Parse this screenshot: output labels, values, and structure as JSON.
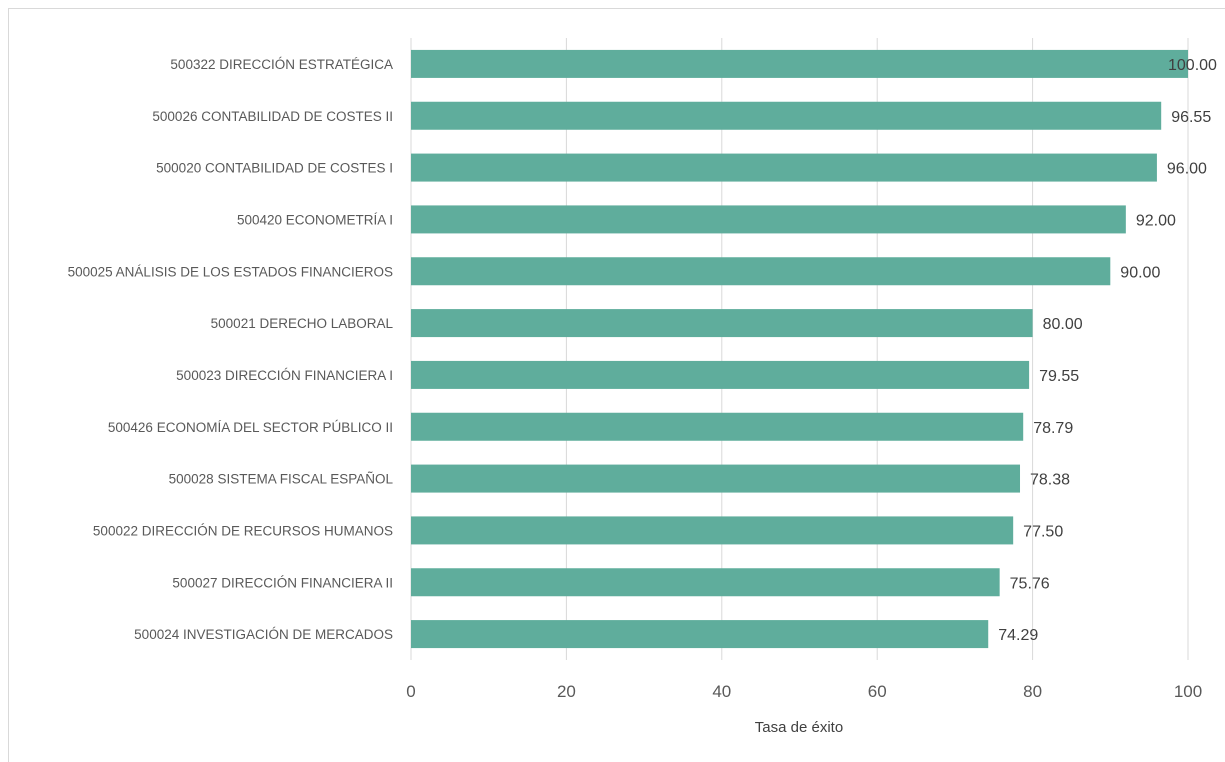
{
  "chart_data": {
    "type": "bar",
    "orientation": "horizontal",
    "categories": [
      "500322 DIRECCIÓN ESTRATÉGICA",
      "500026 CONTABILIDAD DE COSTES II",
      "500020 CONTABILIDAD DE COSTES I",
      "500420 ECONOMETRÍA I",
      "500025 ANÁLISIS DE LOS ESTADOS FINANCIEROS",
      "500021 DERECHO LABORAL",
      "500023 DIRECCIÓN FINANCIERA I",
      "500426 ECONOMÍA DEL SECTOR PÚBLICO II",
      "500028 SISTEMA FISCAL ESPAÑOL",
      "500022 DIRECCIÓN DE RECURSOS HUMANOS",
      "500027 DIRECCIÓN FINANCIERA II",
      "500024 INVESTIGACIÓN DE MERCADOS"
    ],
    "values": [
      100.0,
      96.55,
      96.0,
      92.0,
      90.0,
      80.0,
      79.55,
      78.79,
      78.38,
      77.5,
      75.76,
      74.29
    ],
    "data_labels": [
      "100.00",
      "96.55",
      "96.00",
      "92.00",
      "90.00",
      "80.00",
      "79.55",
      "78.79",
      "78.38",
      "77.50",
      "75.76",
      "74.29"
    ],
    "xlabel": "Tasa de éxito",
    "ylabel": "",
    "xlim": [
      0,
      100
    ],
    "xticks": [
      "0",
      "20",
      "40",
      "60",
      "80",
      "100"
    ],
    "grid": true,
    "legend": "none",
    "colors": {
      "bar": "#5fad9c",
      "grid": "#d9d9d9",
      "text": "#595959"
    }
  }
}
